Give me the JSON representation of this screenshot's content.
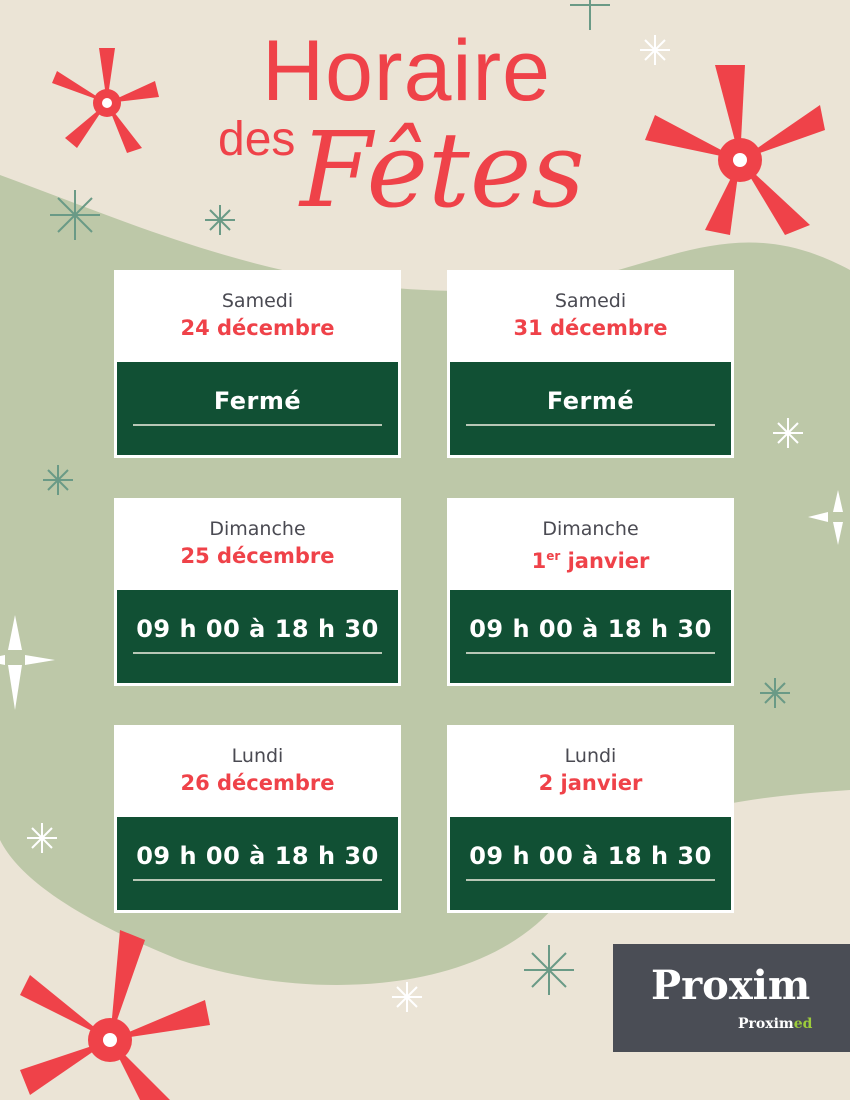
{
  "title": {
    "line1": "Horaire",
    "line2": "des",
    "line3": "Fêtes"
  },
  "colors": {
    "background": "#ebe4d6",
    "blob": "#bdc8a8",
    "accent_red": "#ef4249",
    "dark_green": "#115034",
    "logo_bg": "#4a4d55"
  },
  "schedule": [
    {
      "day": "Samedi",
      "date": "24 décembre",
      "hours": "Fermé"
    },
    {
      "day": "Samedi",
      "date": "31 décembre",
      "hours": "Fermé"
    },
    {
      "day": "Dimanche",
      "date": "25 décembre",
      "hours": "09 h 00 à 18 h 30"
    },
    {
      "day": "Dimanche",
      "date_num": "1",
      "date_sup": "er",
      "date_rest": " janvier",
      "hours": "09 h 00 à 18 h 30"
    },
    {
      "day": "Lundi",
      "date": "26 décembre",
      "hours": "09 h 00 à 18 h 30"
    },
    {
      "day": "Lundi",
      "date": "2 janvier",
      "hours": "09 h 00 à 18 h 30"
    }
  ],
  "logo": {
    "main": "Proxim",
    "sub_a": "Proxim",
    "sub_b": "ed"
  }
}
